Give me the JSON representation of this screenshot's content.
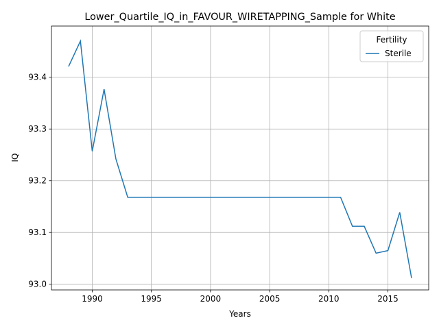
{
  "chart_data": {
    "type": "line",
    "title": "Lower_Quartile_IQ_in_FAVOUR_WIRETAPPING_Sample for White",
    "xlabel": "Years",
    "ylabel": "IQ",
    "x": [
      1988,
      1989,
      1990,
      1991,
      1992,
      1993,
      1994,
      1995,
      1996,
      1997,
      1998,
      1999,
      2000,
      2001,
      2002,
      2003,
      2004,
      2005,
      2006,
      2007,
      2008,
      2009,
      2010,
      2011,
      2012,
      2013,
      2014,
      2015,
      2016,
      2017
    ],
    "series": [
      {
        "name": "Sterile",
        "color": "#1f77b4",
        "values": [
          93.421,
          93.47,
          93.257,
          93.377,
          93.242,
          93.168,
          93.168,
          93.168,
          93.168,
          93.168,
          93.168,
          93.168,
          93.168,
          93.168,
          93.168,
          93.168,
          93.168,
          93.168,
          93.168,
          93.168,
          93.168,
          93.168,
          93.168,
          93.168,
          93.112,
          93.112,
          93.06,
          93.065,
          93.139,
          93.012
        ]
      }
    ],
    "xlim": [
      1986.55,
      2018.45
    ],
    "xticks": [
      1990,
      1995,
      2000,
      2005,
      2010,
      2015
    ],
    "ylim": [
      92.989,
      93.499
    ],
    "yticks": [
      {
        "value": 93.0,
        "label": "93.0"
      },
      93.1,
      93.2,
      93.3,
      93.4
    ],
    "grid": true,
    "legend_title": "Fertility",
    "legend_position": "upper-right"
  }
}
